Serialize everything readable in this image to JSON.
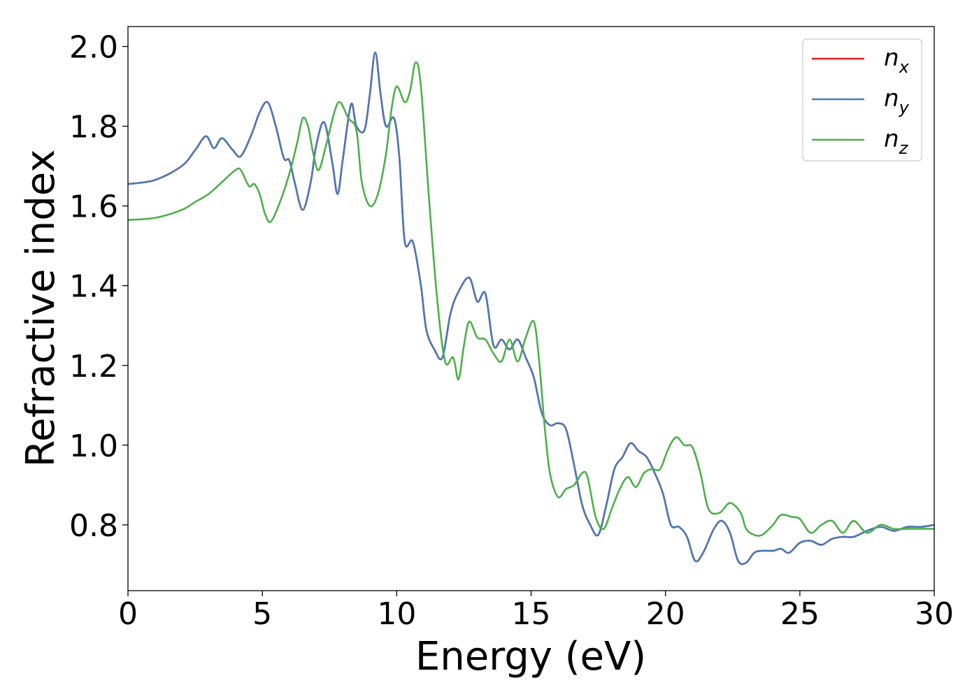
{
  "chart_data": {
    "type": "line",
    "xlabel": "Energy (eV)",
    "ylabel": "Refractive index",
    "xlim": [
      0,
      30
    ],
    "ylim": [
      0.635,
      2.05
    ],
    "xticks": [
      0,
      5,
      10,
      15,
      20,
      25,
      30
    ],
    "xtick_labels": [
      "0",
      "5",
      "10",
      "15",
      "20",
      "25",
      "30"
    ],
    "yticks": [
      0.8,
      1.0,
      1.2,
      1.4,
      1.6,
      1.8,
      2.0
    ],
    "ytick_labels": [
      "0.8",
      "1.0",
      "1.2",
      "1.4",
      "1.6",
      "1.8",
      "2.0"
    ],
    "grid": false,
    "legend_position": "top-right",
    "series": [
      {
        "name": "n",
        "subscript": "x",
        "color": "#e41a1c",
        "x": [
          0,
          1,
          2,
          2.5,
          2.9,
          3.2,
          3.5,
          3.9,
          4.2,
          4.6,
          4.9,
          5.2,
          5.5,
          5.8,
          6.0,
          6.2,
          6.5,
          6.8,
          7.0,
          7.3,
          7.6,
          7.8,
          8.0,
          8.3,
          8.5,
          8.8,
          9.0,
          9.2,
          9.4,
          9.6,
          9.9,
          10.1,
          10.3,
          10.6,
          10.9,
          11.1,
          11.4,
          11.7,
          12.0,
          12.3,
          12.7,
          13.0,
          13.3,
          13.6,
          13.9,
          14.2,
          14.5,
          14.8,
          15.1,
          15.4,
          15.7,
          16.0,
          16.3,
          16.6,
          16.9,
          17.2,
          17.5,
          17.8,
          18.1,
          18.4,
          18.7,
          19.0,
          19.3,
          19.6,
          19.9,
          20.2,
          20.5,
          20.8,
          21.1,
          21.4,
          21.8,
          22.1,
          22.4,
          22.7,
          23.0,
          23.3,
          23.6,
          24.0,
          24.3,
          24.6,
          25.0,
          25.4,
          25.8,
          26.2,
          26.6,
          27.0,
          27.5,
          28.0,
          28.5,
          29.0,
          29.5,
          30.0
        ],
        "y": [
          1.655,
          1.665,
          1.7,
          1.74,
          1.775,
          1.745,
          1.77,
          1.74,
          1.725,
          1.78,
          1.835,
          1.86,
          1.8,
          1.72,
          1.715,
          1.66,
          1.59,
          1.66,
          1.75,
          1.81,
          1.71,
          1.63,
          1.72,
          1.855,
          1.8,
          1.79,
          1.88,
          1.985,
          1.88,
          1.8,
          1.82,
          1.72,
          1.51,
          1.51,
          1.4,
          1.29,
          1.24,
          1.22,
          1.33,
          1.385,
          1.42,
          1.36,
          1.38,
          1.25,
          1.265,
          1.24,
          1.265,
          1.22,
          1.17,
          1.08,
          1.05,
          1.055,
          1.04,
          0.95,
          0.85,
          0.8,
          0.775,
          0.85,
          0.94,
          0.97,
          1.005,
          0.985,
          0.97,
          0.93,
          0.88,
          0.8,
          0.795,
          0.77,
          0.71,
          0.73,
          0.79,
          0.81,
          0.78,
          0.71,
          0.705,
          0.73,
          0.735,
          0.735,
          0.74,
          0.73,
          0.755,
          0.76,
          0.75,
          0.765,
          0.77,
          0.77,
          0.785,
          0.795,
          0.785,
          0.795,
          0.795,
          0.8
        ]
      },
      {
        "name": "n",
        "subscript": "y",
        "color": "#4a7ab5",
        "x": [
          0,
          1,
          2,
          2.5,
          2.9,
          3.2,
          3.5,
          3.9,
          4.2,
          4.6,
          4.9,
          5.2,
          5.5,
          5.8,
          6.0,
          6.2,
          6.5,
          6.8,
          7.0,
          7.3,
          7.6,
          7.8,
          8.0,
          8.3,
          8.5,
          8.8,
          9.0,
          9.2,
          9.4,
          9.6,
          9.9,
          10.1,
          10.3,
          10.6,
          10.9,
          11.1,
          11.4,
          11.7,
          12.0,
          12.3,
          12.7,
          13.0,
          13.3,
          13.6,
          13.9,
          14.2,
          14.5,
          14.8,
          15.1,
          15.4,
          15.7,
          16.0,
          16.3,
          16.6,
          16.9,
          17.2,
          17.5,
          17.8,
          18.1,
          18.4,
          18.7,
          19.0,
          19.3,
          19.6,
          19.9,
          20.2,
          20.5,
          20.8,
          21.1,
          21.4,
          21.8,
          22.1,
          22.4,
          22.7,
          23.0,
          23.3,
          23.6,
          24.0,
          24.3,
          24.6,
          25.0,
          25.4,
          25.8,
          26.2,
          26.6,
          27.0,
          27.5,
          28.0,
          28.5,
          29.0,
          29.5,
          30.0
        ],
        "y": [
          1.655,
          1.665,
          1.7,
          1.74,
          1.775,
          1.745,
          1.77,
          1.74,
          1.725,
          1.78,
          1.835,
          1.86,
          1.8,
          1.72,
          1.715,
          1.66,
          1.59,
          1.66,
          1.75,
          1.81,
          1.71,
          1.63,
          1.72,
          1.855,
          1.8,
          1.79,
          1.88,
          1.985,
          1.88,
          1.8,
          1.82,
          1.72,
          1.51,
          1.51,
          1.4,
          1.29,
          1.24,
          1.22,
          1.33,
          1.385,
          1.42,
          1.36,
          1.38,
          1.25,
          1.265,
          1.24,
          1.265,
          1.22,
          1.17,
          1.08,
          1.05,
          1.055,
          1.04,
          0.95,
          0.85,
          0.8,
          0.775,
          0.85,
          0.94,
          0.97,
          1.005,
          0.985,
          0.97,
          0.93,
          0.88,
          0.8,
          0.795,
          0.77,
          0.71,
          0.73,
          0.79,
          0.81,
          0.78,
          0.71,
          0.705,
          0.73,
          0.735,
          0.735,
          0.74,
          0.73,
          0.755,
          0.76,
          0.75,
          0.765,
          0.77,
          0.77,
          0.785,
          0.795,
          0.785,
          0.795,
          0.795,
          0.8
        ]
      },
      {
        "name": "n",
        "subscript": "z",
        "color": "#4daf4a",
        "x": [
          0,
          1,
          2,
          2.5,
          3.0,
          3.5,
          4.0,
          4.2,
          4.5,
          4.7,
          4.9,
          5.1,
          5.3,
          5.6,
          6.0,
          6.3,
          6.5,
          6.7,
          6.9,
          7.1,
          7.4,
          7.7,
          7.9,
          8.2,
          8.5,
          8.7,
          9.0,
          9.3,
          9.6,
          9.8,
          10.0,
          10.3,
          10.5,
          10.7,
          10.9,
          11.2,
          11.5,
          11.8,
          12.1,
          12.3,
          12.5,
          12.7,
          13.0,
          13.3,
          13.6,
          13.9,
          14.2,
          14.5,
          14.8,
          15.1,
          15.3,
          15.5,
          15.7,
          16.0,
          16.3,
          16.6,
          16.9,
          17.1,
          17.4,
          17.7,
          18.0,
          18.3,
          18.6,
          18.9,
          19.2,
          19.5,
          19.8,
          20.1,
          20.4,
          20.7,
          21.0,
          21.3,
          21.6,
          22.0,
          22.4,
          22.8,
          23.0,
          23.3,
          23.6,
          24.0,
          24.3,
          24.7,
          25.0,
          25.4,
          25.8,
          26.2,
          26.6,
          27.0,
          27.5,
          28.0,
          28.5,
          29.0,
          29.5,
          30.0
        ],
        "y": [
          1.565,
          1.57,
          1.59,
          1.61,
          1.63,
          1.66,
          1.69,
          1.69,
          1.65,
          1.655,
          1.63,
          1.58,
          1.56,
          1.6,
          1.68,
          1.76,
          1.82,
          1.8,
          1.73,
          1.69,
          1.76,
          1.84,
          1.86,
          1.82,
          1.79,
          1.66,
          1.6,
          1.63,
          1.73,
          1.84,
          1.9,
          1.86,
          1.89,
          1.96,
          1.9,
          1.62,
          1.37,
          1.21,
          1.22,
          1.165,
          1.25,
          1.31,
          1.27,
          1.265,
          1.23,
          1.21,
          1.265,
          1.21,
          1.27,
          1.31,
          1.21,
          1.05,
          0.93,
          0.87,
          0.89,
          0.9,
          0.93,
          0.92,
          0.82,
          0.79,
          0.84,
          0.89,
          0.92,
          0.895,
          0.93,
          0.94,
          0.94,
          0.99,
          1.02,
          1.0,
          0.995,
          0.93,
          0.84,
          0.83,
          0.855,
          0.83,
          0.79,
          0.775,
          0.775,
          0.8,
          0.825,
          0.82,
          0.815,
          0.78,
          0.8,
          0.81,
          0.78,
          0.81,
          0.78,
          0.8,
          0.79,
          0.79,
          0.79,
          0.79
        ]
      }
    ]
  }
}
